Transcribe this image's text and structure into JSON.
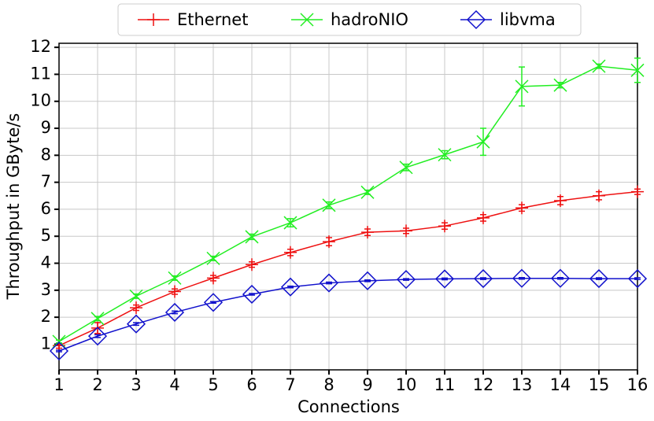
{
  "chart_data": {
    "type": "line",
    "xlabel": "Connections",
    "ylabel": "Throughput in GByte/s",
    "x": [
      1,
      2,
      3,
      4,
      5,
      6,
      7,
      8,
      9,
      10,
      11,
      12,
      13,
      14,
      15,
      16
    ],
    "series": [
      {
        "name": "Ethernet",
        "color": "#ee1111",
        "marker": "plus",
        "values": [
          0.95,
          1.6,
          2.35,
          2.95,
          3.45,
          3.95,
          4.4,
          4.8,
          5.15,
          5.2,
          5.38,
          5.68,
          6.05,
          6.32,
          6.5,
          6.65
        ],
        "errors": [
          0.1,
          0.2,
          0.1,
          0.1,
          0.1,
          0.1,
          0.12,
          0.15,
          0.12,
          0.1,
          0.12,
          0.12,
          0.12,
          0.15,
          0.15,
          0.1
        ]
      },
      {
        "name": "hadroNIO",
        "color": "#22ee22",
        "marker": "x",
        "values": [
          1.1,
          1.95,
          2.78,
          3.45,
          4.18,
          4.98,
          5.5,
          6.15,
          6.63,
          7.55,
          8.02,
          8.5,
          10.55,
          10.6,
          11.3,
          11.15
        ],
        "errors": [
          0.05,
          0.08,
          0.08,
          0.08,
          0.08,
          0.1,
          0.15,
          0.12,
          0.08,
          0.12,
          0.15,
          0.5,
          0.72,
          0.1,
          0.08,
          0.45
        ]
      },
      {
        "name": "libvma",
        "color": "#1111cc",
        "marker": "diamond",
        "values": [
          0.75,
          1.3,
          1.75,
          2.18,
          2.55,
          2.85,
          3.12,
          3.27,
          3.35,
          3.4,
          3.42,
          3.43,
          3.44,
          3.44,
          3.43,
          3.43
        ],
        "errors": [
          0.03,
          0.05,
          0.05,
          0.05,
          0.03,
          0.03,
          0.03,
          0.03,
          0.03,
          0.03,
          0.03,
          0.03,
          0.03,
          0.03,
          0.03,
          0.03
        ]
      }
    ],
    "xlim": [
      1,
      16
    ],
    "xticks": [
      1,
      2,
      3,
      4,
      5,
      6,
      7,
      8,
      9,
      10,
      11,
      12,
      13,
      14,
      15,
      16
    ],
    "ylim": [
      0.05,
      12.15
    ],
    "yticks": [
      1,
      2,
      3,
      4,
      5,
      6,
      7,
      8,
      9,
      10,
      11,
      12
    ],
    "grid": true,
    "legend": "top"
  }
}
